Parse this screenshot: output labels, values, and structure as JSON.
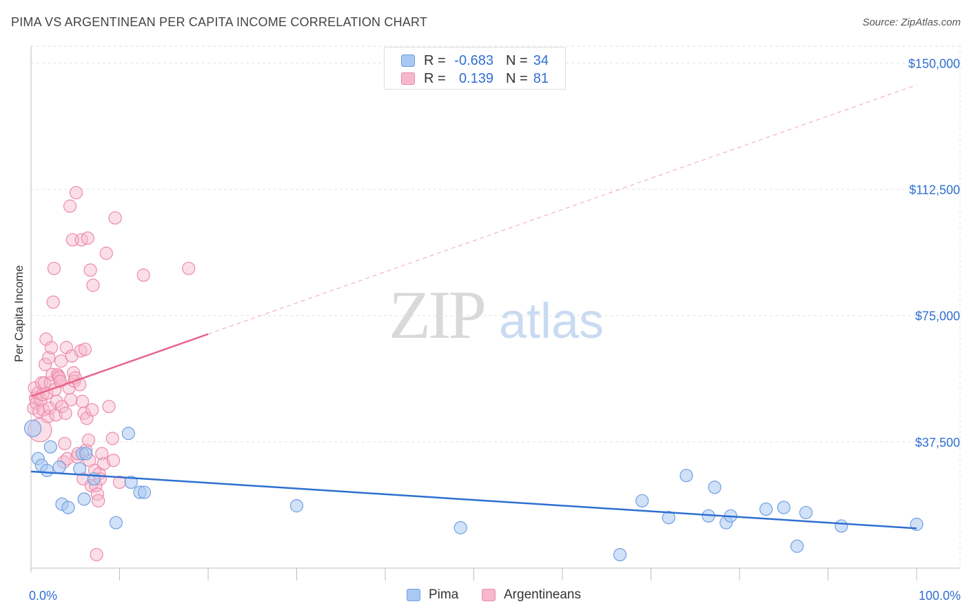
{
  "title": "PIMA VS ARGENTINEAN PER CAPITA INCOME CORRELATION CHART",
  "source": "Source: ZipAtlas.com",
  "colors": {
    "pima_fill": "#a9c8f3",
    "pima_stroke": "#6f9fe0",
    "pima_line": "#2d6fd0",
    "arg_fill": "#f7b8cc",
    "arg_stroke": "#ec8aa8",
    "arg_line": "#e8648d",
    "axis_text_blue": "#2f6fd1",
    "grid": "#e2e2e2"
  },
  "legend": {
    "rows": [
      {
        "series": "Pima",
        "r_label": "R =",
        "r_value": "-0.683",
        "n_label": "N =",
        "n_value": "34"
      },
      {
        "series": "Argentineans",
        "r_label": "R =",
        "r_value": "0.139",
        "n_label": "N =",
        "n_value": "81"
      }
    ]
  },
  "watermark": {
    "zip": "ZIP",
    "atlas": "atlas"
  },
  "chart_data": {
    "type": "scatter",
    "title": "PIMA VS ARGENTINEAN PER CAPITA INCOME CORRELATION CHART",
    "xlabel": "",
    "ylabel": "Per Capita Income",
    "xlim": [
      0,
      100
    ],
    "ylim": [
      0,
      155000
    ],
    "x_tick_labels": [
      "0.0%",
      "100.0%"
    ],
    "y_ticks": [
      37500,
      75000,
      112500,
      150000
    ],
    "y_tick_labels": [
      "$37,500",
      "$75,000",
      "$112,500",
      "$150,000"
    ],
    "grid": true,
    "series": [
      {
        "name": "Pima",
        "points": [
          [
            0.2,
            41500
          ],
          [
            0.8,
            32500
          ],
          [
            1.2,
            30500
          ],
          [
            1.8,
            29000
          ],
          [
            2.2,
            36000
          ],
          [
            3.2,
            30000
          ],
          [
            3.5,
            19000
          ],
          [
            4.2,
            18000
          ],
          [
            5.5,
            29500
          ],
          [
            5.8,
            34000
          ],
          [
            6.2,
            34000
          ],
          [
            6.0,
            20500
          ],
          [
            7.1,
            26500
          ],
          [
            9.6,
            13500
          ],
          [
            11.0,
            40000
          ],
          [
            11.3,
            25500
          ],
          [
            12.3,
            22500
          ],
          [
            12.8,
            22500
          ],
          [
            30.0,
            18500
          ],
          [
            48.5,
            12000
          ],
          [
            66.5,
            4000
          ],
          [
            69.0,
            20000
          ],
          [
            72.0,
            15000
          ],
          [
            74.0,
            27500
          ],
          [
            76.5,
            15500
          ],
          [
            77.2,
            24000
          ],
          [
            78.5,
            13500
          ],
          [
            79.0,
            15500
          ],
          [
            83.0,
            17500
          ],
          [
            85.0,
            18000
          ],
          [
            86.5,
            6500
          ],
          [
            87.5,
            16500
          ],
          [
            91.5,
            12500
          ],
          [
            100.0,
            13000
          ]
        ],
        "trend": {
          "x": [
            0,
            100
          ],
          "y": [
            28700,
            11800
          ],
          "style": "solid"
        }
      },
      {
        "name": "Argentineans",
        "points": [
          [
            0.3,
            47500
          ],
          [
            0.4,
            53500
          ],
          [
            0.5,
            50500
          ],
          [
            0.6,
            49000
          ],
          [
            0.8,
            52000
          ],
          [
            0.9,
            46500
          ],
          [
            1.0,
            41000
          ],
          [
            1.1,
            50000
          ],
          [
            1.2,
            55000
          ],
          [
            1.3,
            51500
          ],
          [
            1.4,
            47000
          ],
          [
            1.5,
            55000
          ],
          [
            1.6,
            60500
          ],
          [
            1.7,
            68000
          ],
          [
            1.8,
            52000
          ],
          [
            1.9,
            45000
          ],
          [
            2.0,
            62500
          ],
          [
            2.1,
            47500
          ],
          [
            2.2,
            55000
          ],
          [
            2.3,
            65500
          ],
          [
            2.4,
            57500
          ],
          [
            2.5,
            79000
          ],
          [
            2.6,
            89000
          ],
          [
            2.7,
            53000
          ],
          [
            2.8,
            45500
          ],
          [
            2.9,
            49500
          ],
          [
            3.0,
            57500
          ],
          [
            3.1,
            57000
          ],
          [
            3.2,
            56500
          ],
          [
            3.3,
            55500
          ],
          [
            3.4,
            61500
          ],
          [
            3.5,
            48000
          ],
          [
            3.7,
            31500
          ],
          [
            3.8,
            37000
          ],
          [
            3.9,
            46000
          ],
          [
            4.0,
            65500
          ],
          [
            4.1,
            32500
          ],
          [
            4.3,
            53500
          ],
          [
            4.4,
            107500
          ],
          [
            4.5,
            50000
          ],
          [
            4.6,
            63000
          ],
          [
            4.7,
            97500
          ],
          [
            4.8,
            58000
          ],
          [
            4.9,
            55500
          ],
          [
            5.0,
            56500
          ],
          [
            5.1,
            111500
          ],
          [
            5.2,
            33000
          ],
          [
            5.3,
            34000
          ],
          [
            5.5,
            54500
          ],
          [
            5.6,
            64500
          ],
          [
            5.7,
            97500
          ],
          [
            5.8,
            49500
          ],
          [
            5.9,
            26500
          ],
          [
            6.0,
            46000
          ],
          [
            6.1,
            65000
          ],
          [
            6.2,
            35000
          ],
          [
            6.3,
            44500
          ],
          [
            6.4,
            98000
          ],
          [
            6.5,
            38000
          ],
          [
            6.6,
            32000
          ],
          [
            6.7,
            88500
          ],
          [
            6.8,
            24500
          ],
          [
            6.9,
            47000
          ],
          [
            7.0,
            84000
          ],
          [
            7.2,
            29000
          ],
          [
            7.3,
            24500
          ],
          [
            7.5,
            22000
          ],
          [
            7.7,
            28000
          ],
          [
            7.8,
            26500
          ],
          [
            7.6,
            20000
          ],
          [
            7.4,
            4000
          ],
          [
            8.0,
            34000
          ],
          [
            8.2,
            31000
          ],
          [
            8.5,
            93500
          ],
          [
            8.8,
            48000
          ],
          [
            9.2,
            38500
          ],
          [
            9.3,
            32000
          ],
          [
            9.5,
            104000
          ],
          [
            10.0,
            25500
          ],
          [
            12.7,
            87000
          ],
          [
            17.8,
            89000
          ]
        ],
        "trend": {
          "x_solid": [
            0,
            20
          ],
          "y_solid": [
            51000,
            69500
          ],
          "x_dashed": [
            20,
            100
          ],
          "y_dashed": [
            69500,
            143500
          ]
        }
      }
    ]
  }
}
